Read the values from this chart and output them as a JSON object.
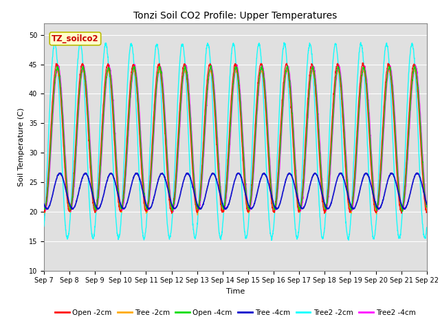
{
  "title": "Tonzi Soil CO2 Profile: Upper Temperatures",
  "ylabel": "Soil Temperature (C)",
  "xlabel": "Time",
  "ylim": [
    10,
    52
  ],
  "yticks": [
    10,
    15,
    20,
    25,
    30,
    35,
    40,
    45,
    50
  ],
  "xtick_labels": [
    "Sep 7",
    "Sep 8",
    "Sep 9",
    "Sep 10",
    "Sep 11",
    "Sep 12",
    "Sep 13",
    "Sep 14",
    "Sep 15",
    "Sep 16",
    "Sep 17",
    "Sep 18",
    "Sep 19",
    "Sep 20",
    "Sep 21",
    "Sep 22"
  ],
  "background_color": "#e0e0e0",
  "series": [
    {
      "name": "Open -2cm",
      "color": "#ff0000",
      "lw": 1.0,
      "zorder": 5
    },
    {
      "name": "Tree -2cm",
      "color": "#ffaa00",
      "lw": 1.0,
      "zorder": 4
    },
    {
      "name": "Open -4cm",
      "color": "#00dd00",
      "lw": 1.0,
      "zorder": 6
    },
    {
      "name": "Tree -4cm",
      "color": "#0000cc",
      "lw": 1.3,
      "zorder": 7
    },
    {
      "name": "Tree2 -2cm",
      "color": "#00ffff",
      "lw": 1.0,
      "zorder": 3
    },
    {
      "name": "Tree2 -4cm",
      "color": "#ff00ff",
      "lw": 1.0,
      "zorder": 4
    }
  ],
  "annotation": "TZ_soilco2",
  "n_days": 15,
  "pts_per_day": 144,
  "open2_mean": 32.5,
  "open2_amp": 12.5,
  "open2_phase": 0.0,
  "tree2cm_mean": 32.0,
  "tree2cm_amp": 12.0,
  "tree2cm_phase": 0.02,
  "open4_mean": 32.5,
  "open4_amp": 12.0,
  "open4_phase": 0.03,
  "tree4_mean": 23.5,
  "tree4_amp": 3.0,
  "tree4_phase": 0.12,
  "tree2_2cm_mean": 32.0,
  "tree2_2cm_amp": 16.5,
  "tree2_2cm_phase": -0.08,
  "tree2_4cm_mean": 32.5,
  "tree2_4cm_amp": 12.2,
  "tree2_4cm_phase": 0.05,
  "title_fontsize": 10,
  "axis_fontsize": 8,
  "tick_fontsize": 7,
  "legend_fontsize": 7.5
}
